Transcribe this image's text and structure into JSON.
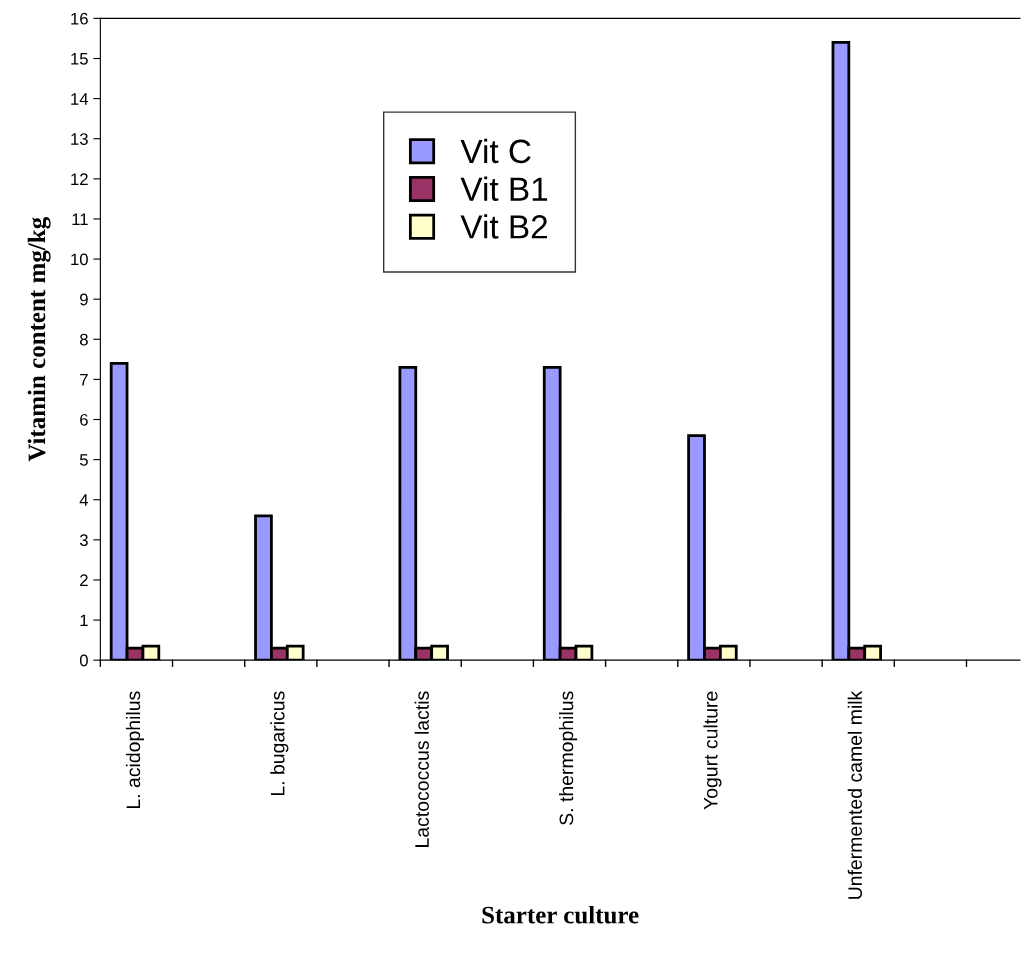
{
  "chart_data": {
    "type": "bar",
    "xlabel": "Starter culture",
    "ylabel": "Vitamin content mg/kg",
    "categories": [
      "L. acidophilus",
      "L. bugaricus",
      "Lactococcus lactis",
      "S. thermophilus",
      "Yogurt culture",
      "Unfermented camel milk"
    ],
    "series": [
      {
        "name": "Vit C",
        "color": "#9999ff",
        "values": [
          7.4,
          3.6,
          7.3,
          7.3,
          5.6,
          15.4
        ]
      },
      {
        "name": "Vit B1",
        "color": "#993366",
        "values": [
          0.3,
          0.3,
          0.3,
          0.3,
          0.3,
          0.3
        ]
      },
      {
        "name": "Vit B2",
        "color": "#ffffcc",
        "values": [
          0.35,
          0.35,
          0.35,
          0.35,
          0.35,
          0.35
        ]
      }
    ],
    "ylim": [
      0,
      16
    ],
    "yticks": [
      0,
      1,
      2,
      3,
      4,
      5,
      6,
      7,
      8,
      9,
      10,
      11,
      12,
      13,
      14,
      15,
      16
    ],
    "legend": "top center",
    "grid": false
  }
}
